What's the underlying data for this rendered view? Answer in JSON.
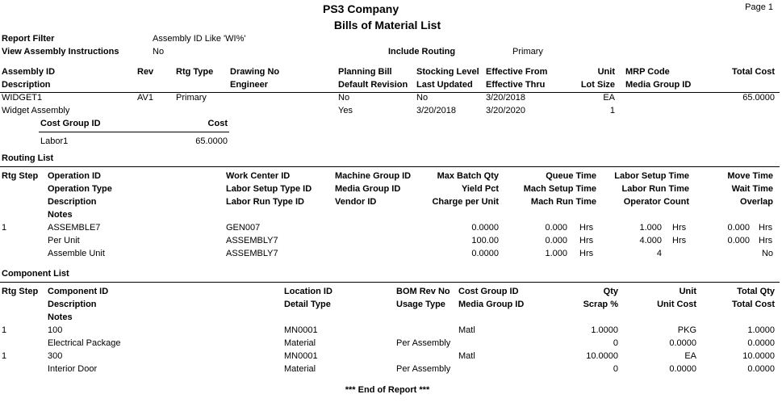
{
  "header": {
    "company": "PS3 Company",
    "title": "Bills of Material List",
    "page": "Page 1"
  },
  "filter": {
    "report_filter_label": "Report Filter",
    "report_filter_value": "Assembly ID Like 'WI%'",
    "view_instructions_label": "View Assembly Instructions",
    "view_instructions_value": "No",
    "include_routing_label": "Include Routing",
    "include_routing_value": "Primary"
  },
  "assembly": {
    "headers": {
      "assembly_id": "Assembly ID",
      "description": "Description",
      "rev": "Rev",
      "rtg_type": "Rtg Type",
      "drawing_no": "Drawing No",
      "engineer": "Engineer",
      "planning_bill": "Planning Bill",
      "default_revision": "Default Revision",
      "stocking_level": "Stocking Level",
      "last_updated": "Last Updated",
      "effective_from": "Effective From",
      "effective_thru": "Effective Thru",
      "unit": "Unit",
      "lot_size": "Lot Size",
      "mrp_code": "MRP Code",
      "media_group_id": "Media Group ID",
      "total_cost": "Total Cost"
    },
    "row": {
      "assembly_id": "WIDGET1",
      "description": "Widget Assembly",
      "rev": "AV1",
      "rtg_type": "Primary",
      "planning_bill": "No",
      "default_revision": "Yes",
      "stocking_level": "No",
      "last_updated": "3/20/2018",
      "effective_from": "3/20/2018",
      "effective_thru": "3/20/2020",
      "unit": "EA",
      "lot_size": "1",
      "total_cost": "65.0000"
    },
    "cost_group": {
      "header_id": "Cost Group ID",
      "header_cost": "Cost",
      "id": "Labor1",
      "cost": "65.0000"
    }
  },
  "routing": {
    "section_title": "Routing List",
    "headers": {
      "rtg_step": "Rtg Step",
      "operation_id": "Operation ID",
      "operation_type": "Operation Type",
      "description": "Description",
      "notes": "Notes",
      "work_center_id": "Work Center ID",
      "labor_setup_type_id": "Labor Setup Type ID",
      "labor_run_type_id": "Labor Run Type ID",
      "machine_group_id": "Machine Group ID",
      "media_group_id": "Media Group ID",
      "vendor_id": "Vendor ID",
      "max_batch_qty": "Max Batch Qty",
      "yield_pct": "Yield Pct",
      "charge_per_unit": "Charge per Unit",
      "queue_time": "Queue Time",
      "mach_setup_time": "Mach Setup Time",
      "mach_run_time": "Mach Run Time",
      "labor_setup_time": "Labor Setup Time",
      "labor_run_time": "Labor Run Time",
      "operator_count": "Operator Count",
      "move_time": "Move Time",
      "wait_time": "Wait Time",
      "overlap": "Overlap"
    },
    "row": {
      "rtg_step": "1",
      "operation_id": "ASSEMBLE7",
      "operation_type": "Per Unit",
      "description": "Assemble Unit",
      "work_center_id": "GEN007",
      "labor_setup_type_id": "ASSEMBLY7",
      "labor_run_type_id": "ASSEMBLY7",
      "max_batch_qty": "0.0000",
      "yield_pct": "100.00",
      "charge_per_unit": "0.0000",
      "queue_time": "0.000",
      "mach_setup_time": "0.000",
      "mach_run_time": "1.000",
      "hrs": "Hrs",
      "labor_setup_time": "1.000",
      "labor_run_time": "4.000",
      "operator_count": "4",
      "move_time": "0.000",
      "wait_time": "0.000",
      "overlap": "No"
    }
  },
  "components": {
    "section_title": "Component List",
    "headers": {
      "rtg_step": "Rtg Step",
      "component_id": "Component ID",
      "description": "Description",
      "notes": "Notes",
      "location_id": "Location ID",
      "detail_type": "Detail Type",
      "bom_rev_no": "BOM Rev No",
      "usage_type": "Usage Type",
      "cost_group_id": "Cost Group ID",
      "media_group_id": "Media Group ID",
      "qty": "Qty",
      "scrap_pct": "Scrap %",
      "unit": "Unit",
      "unit_cost": "Unit Cost",
      "total_qty": "Total Qty",
      "total_cost": "Total Cost"
    },
    "rows": [
      {
        "rtg_step": "1",
        "component_id": "100",
        "description": "Electrical Package",
        "location_id": "MN0001",
        "detail_type": "Material",
        "usage_type": "Per Assembly",
        "cost_group_id": "Matl",
        "qty": "1.0000",
        "scrap_pct": "0",
        "unit": "PKG",
        "unit_cost": "0.0000",
        "total_qty": "1.0000",
        "total_cost": "0.0000"
      },
      {
        "rtg_step": "1",
        "component_id": "300",
        "description": "Interior Door",
        "location_id": "MN0001",
        "detail_type": "Material",
        "usage_type": "Per Assembly",
        "cost_group_id": "Matl",
        "qty": "10.0000",
        "scrap_pct": "0",
        "unit": "EA",
        "unit_cost": "0.0000",
        "total_qty": "10.0000",
        "total_cost": "0.0000"
      }
    ]
  },
  "footer": {
    "end_of_report": "*** End of Report ***"
  }
}
